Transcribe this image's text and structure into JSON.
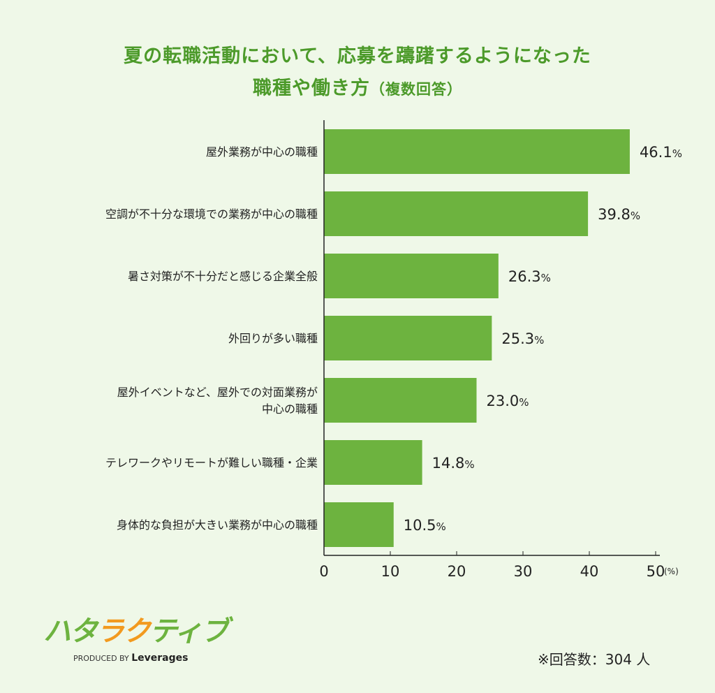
{
  "title_line1": "夏の転職活動において、応募を躊躇するようになった",
  "title_line2": "職種や働き方",
  "title_suffix": "（複数回答）",
  "chart_data": {
    "type": "bar",
    "orientation": "horizontal",
    "categories": [
      "屋外業務が中心の職種",
      "空調が不十分な環境での業務が中心の職種",
      "暑さ対策が不十分だと感じる企業全般",
      "外回りが多い職種",
      "屋外イベントなど、屋外での対面業務が\n中心の職種",
      "テレワークやリモートが難しい職種・企業",
      "身体的な負担が大きい業務が中心の職種"
    ],
    "values": [
      46.1,
      39.8,
      26.3,
      25.3,
      23.0,
      14.8,
      10.5
    ],
    "value_labels": [
      "46.1",
      "39.8",
      "26.3",
      "25.3",
      "23.0",
      "14.8",
      "10.5"
    ],
    "value_unit": "%",
    "xlim": [
      0,
      50
    ],
    "xticks": [
      0,
      10,
      20,
      30,
      40,
      50
    ],
    "xunit": "(%)",
    "grid": false,
    "bar_color": "#6db33f"
  },
  "logo": {
    "name": "ハタラクティブ",
    "produced_by": "PRODUCED BY",
    "brand": "Leverages"
  },
  "note": "※回答数：304 人",
  "colors": {
    "background": "#eff8e8",
    "title": "#4c9a2a",
    "bar": "#6db33f",
    "logo_accent": "#f29a1f"
  }
}
